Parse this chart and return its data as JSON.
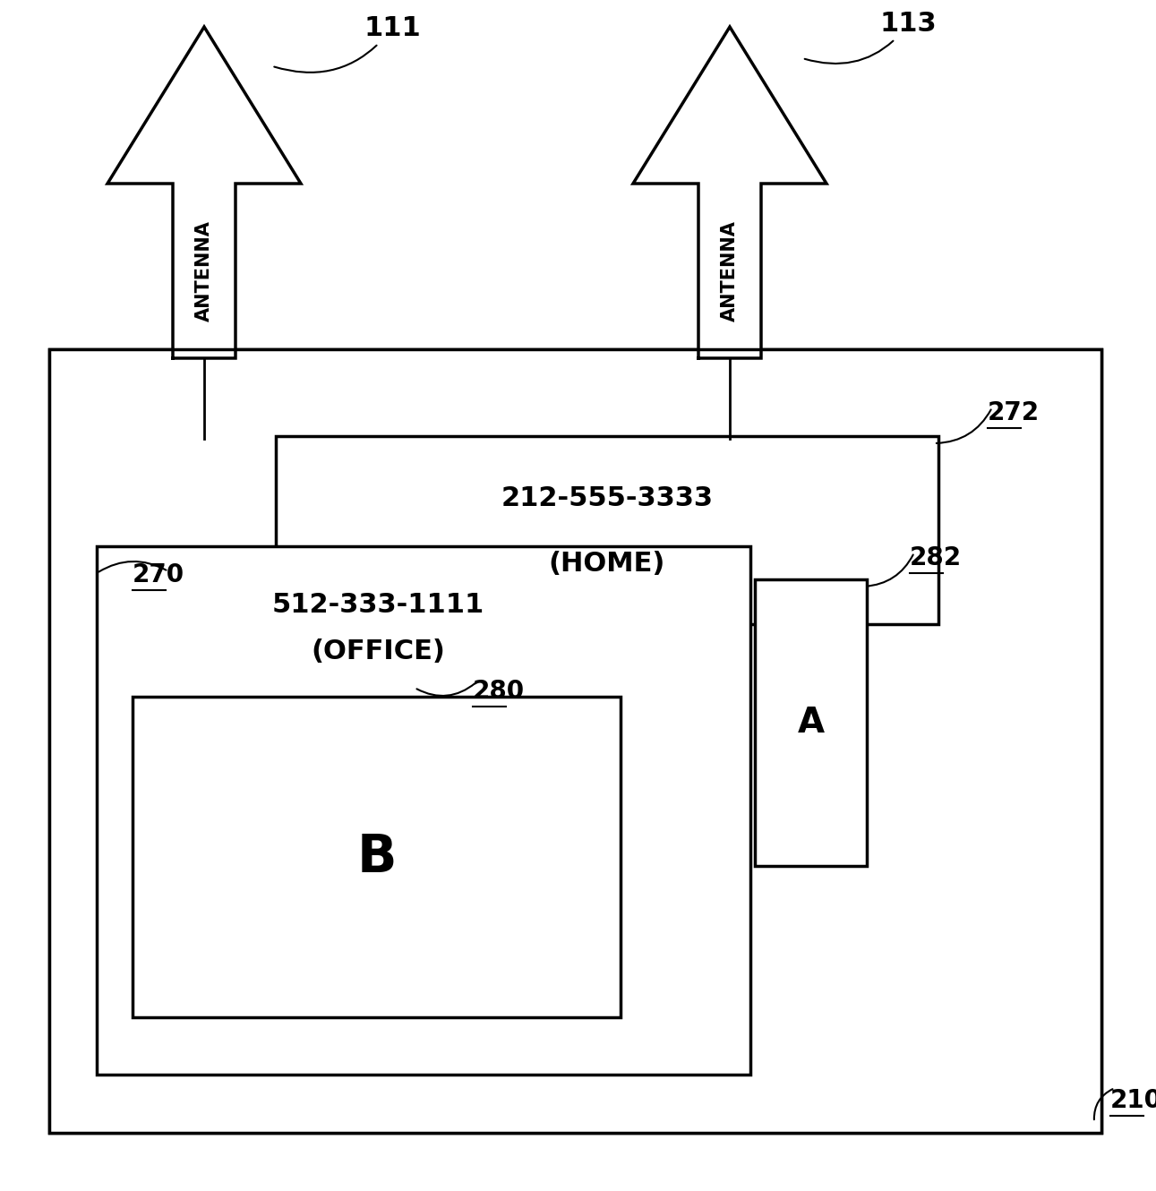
{
  "bg_color": "#ffffff",
  "line_color": "#000000",
  "label_color": "#000000",
  "antenna1_label": "111",
  "antenna2_label": "113",
  "antenna_text": "ANTENNA",
  "outer_box_label": "210",
  "mid_box_label": "270",
  "home_box_label": "272",
  "home_phone": "212-555-3333",
  "home_loc": "(HOME)",
  "office_box_label": "280",
  "office_phone": "512-333-1111",
  "office_loc": "(OFFICE)",
  "side_box_label": "282",
  "side_box_letter": "A",
  "inner_box_letter": "B",
  "fig_width": 12.91,
  "fig_height": 13.3
}
